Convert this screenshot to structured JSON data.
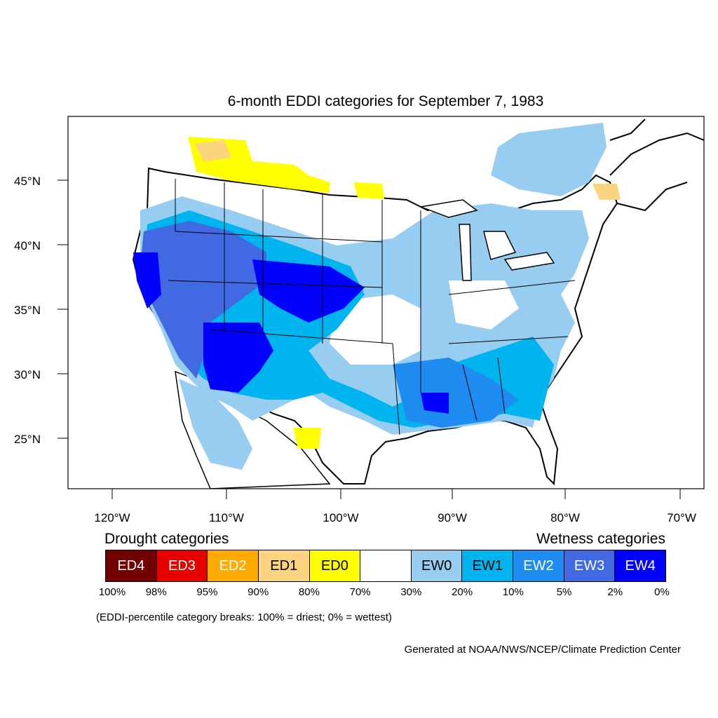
{
  "title": "6-month EDDI categories for September 7, 1983",
  "axes": {
    "lat_labels": [
      "45°N",
      "40°N",
      "35°N",
      "30°N",
      "25°N"
    ],
    "lon_labels": [
      "120°W",
      "110°W",
      "100°W",
      "90°W",
      "80°W",
      "70°W"
    ]
  },
  "legend": {
    "drought_heading": "Drought categories",
    "wetness_heading": "Wetness categories",
    "categories": [
      {
        "label": "ED4",
        "color": "#730000",
        "text_color": "#ffffff"
      },
      {
        "label": "ED3",
        "color": "#e60000",
        "text_color": "#ffffff"
      },
      {
        "label": "ED2",
        "color": "#ffaa00",
        "text_color": "#ffffff"
      },
      {
        "label": "ED1",
        "color": "#fcd37f",
        "text_color": "#000000"
      },
      {
        "label": "ED0",
        "color": "#ffff00",
        "text_color": "#000000"
      },
      {
        "label": "",
        "color": "#ffffff",
        "text_color": "#000000"
      },
      {
        "label": "EW0",
        "color": "#96cdf0",
        "text_color": "#000000"
      },
      {
        "label": "EW1",
        "color": "#00b4f0",
        "text_color": "#000000"
      },
      {
        "label": "EW2",
        "color": "#1e8cf0",
        "text_color": "#ffffff"
      },
      {
        "label": "EW3",
        "color": "#4169e1",
        "text_color": "#ffffff"
      },
      {
        "label": "EW4",
        "color": "#0000ff",
        "text_color": "#ffffff"
      }
    ],
    "percent_breaks": [
      "100%",
      "98%",
      "95%",
      "90%",
      "80%",
      "70%",
      "30%",
      "20%",
      "10%",
      "5%",
      "2%",
      "0%"
    ]
  },
  "note": "(EDDI-percentile category breaks: 100% = driest; 0% = wettest)",
  "credit": "Generated at NOAA/NWS/NCEP/Climate Prediction Center"
}
